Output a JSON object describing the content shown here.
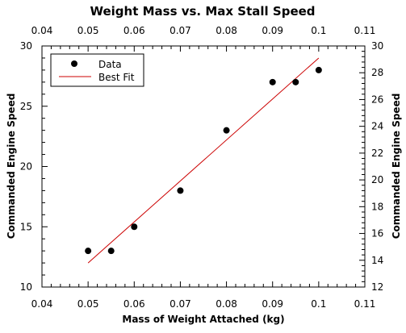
{
  "chart_data": {
    "type": "scatter",
    "title": "Weight Mass vs. Max Stall Speed",
    "xlabel": "Mass of Weight Attached (kg)",
    "ylabel": "Commanded Engine Speed",
    "ylabel_right": "Commanded Engine Speed",
    "xlim": [
      0.04,
      0.11
    ],
    "ylim": [
      10,
      30
    ],
    "ylim_right": [
      12,
      30
    ],
    "x_ticks": [
      "0.04",
      "0.05",
      "0.06",
      "0.07",
      "0.08",
      "0.09",
      "0.1",
      "0.11"
    ],
    "y_ticks": [
      "10",
      "15",
      "20",
      "25",
      "30"
    ],
    "y_right_ticks": [
      "12",
      "14",
      "16",
      "18",
      "20",
      "22",
      "24",
      "26",
      "28",
      "30"
    ],
    "grid": false,
    "legend": {
      "placement": "top-left",
      "entries": [
        "Data",
        "Best Fit"
      ]
    },
    "series": [
      {
        "name": "Data",
        "type": "scatter",
        "color": "#000000",
        "x": [
          0.05,
          0.055,
          0.06,
          0.07,
          0.08,
          0.09,
          0.095,
          0.1
        ],
        "y": [
          13,
          13,
          15,
          18,
          23,
          27,
          27,
          28
        ]
      },
      {
        "name": "Best Fit",
        "type": "line",
        "color": "#cc0000",
        "x": [
          0.05,
          0.1
        ],
        "y": [
          12,
          29
        ]
      }
    ]
  }
}
